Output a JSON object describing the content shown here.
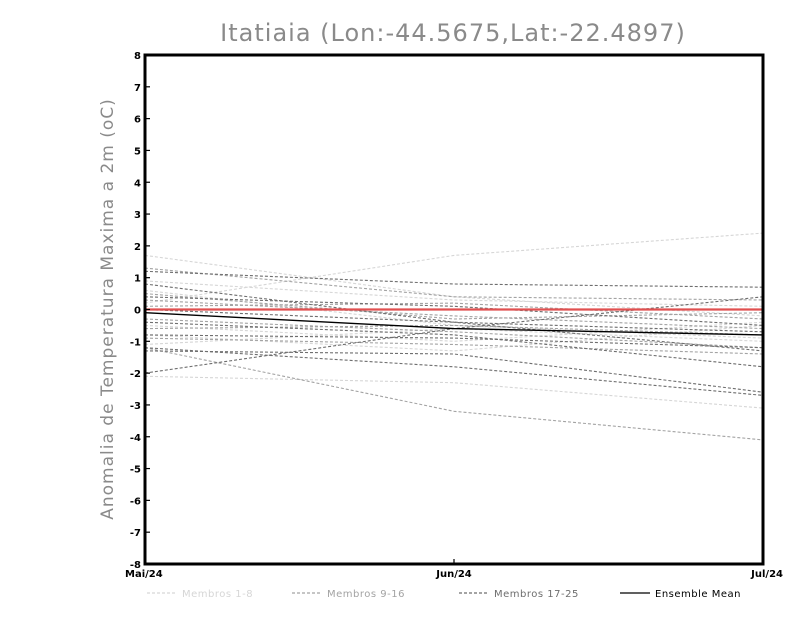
{
  "chart_data": {
    "type": "line",
    "title": "Itatiaia (Lon:-44.5675,Lat:-22.4897)",
    "xlabel": "",
    "ylabel": "Anomalia de Temperatura Maxima a 2m (oC)",
    "x": [
      "Mai/24",
      "Jun/24",
      "Jul/24"
    ],
    "ylim": [
      -8,
      8
    ],
    "yticks": [
      -8,
      -7,
      -6,
      -5,
      -4,
      -3,
      -2,
      -1,
      0,
      1,
      2,
      3,
      4,
      5,
      6,
      7,
      8
    ],
    "grid": false,
    "legend_position": "bottom",
    "legend": [
      {
        "label": "Membros 1-8",
        "color": "#d6d6d6",
        "dash": "dashed"
      },
      {
        "label": "Membros 9-16",
        "color": "#a3a3a3",
        "dash": "dashed"
      },
      {
        "label": "Membros 17-25",
        "color": "#6e6e6e",
        "dash": "dashed"
      },
      {
        "label": "Ensemble Mean",
        "color": "#000000",
        "dash": "solid"
      }
    ],
    "zero_line_color": "#e05050",
    "series": [
      {
        "group": 1,
        "values": [
          1.7,
          0.4,
          -0.2
        ]
      },
      {
        "group": 1,
        "values": [
          0.2,
          1.7,
          2.4
        ]
      },
      {
        "group": 1,
        "values": [
          -0.8,
          -1.3,
          -0.5
        ]
      },
      {
        "group": 1,
        "values": [
          -2.1,
          -2.3,
          -3.1
        ]
      },
      {
        "group": 1,
        "values": [
          0.6,
          -0.5,
          -0.9
        ]
      },
      {
        "group": 1,
        "values": [
          -0.5,
          -1.0,
          -0.4
        ]
      },
      {
        "group": 1,
        "values": [
          0.9,
          0.3,
          0.1
        ]
      },
      {
        "group": 1,
        "values": [
          -1.1,
          -0.6,
          -1.0
        ]
      },
      {
        "group": 2,
        "values": [
          1.3,
          0.4,
          0.3
        ]
      },
      {
        "group": 2,
        "values": [
          -1.2,
          -3.2,
          -4.1
        ]
      },
      {
        "group": 2,
        "values": [
          0.3,
          -0.2,
          -0.6
        ]
      },
      {
        "group": 2,
        "values": [
          -0.3,
          -0.7,
          -1.2
        ]
      },
      {
        "group": 2,
        "values": [
          0.1,
          0.2,
          -0.3
        ]
      },
      {
        "group": 2,
        "values": [
          -0.9,
          -1.1,
          -1.4
        ]
      },
      {
        "group": 2,
        "values": [
          0.5,
          -0.3,
          -0.1
        ]
      },
      {
        "group": 2,
        "values": [
          -0.6,
          -0.5,
          -0.8
        ]
      },
      {
        "group": 3,
        "values": [
          1.2,
          0.8,
          0.7
        ]
      },
      {
        "group": 3,
        "values": [
          -2.0,
          -0.6,
          0.4
        ]
      },
      {
        "group": 3,
        "values": [
          -1.2,
          -1.8,
          -2.7
        ]
      },
      {
        "group": 3,
        "values": [
          0.8,
          -0.4,
          -1.3
        ]
      },
      {
        "group": 3,
        "values": [
          -0.4,
          -0.8,
          -1.8
        ]
      },
      {
        "group": 3,
        "values": [
          0.4,
          0.1,
          -0.5
        ]
      },
      {
        "group": 3,
        "values": [
          -0.8,
          -0.9,
          -1.2
        ]
      },
      {
        "group": 3,
        "values": [
          0.0,
          -0.4,
          -0.7
        ]
      },
      {
        "group": 3,
        "values": [
          -1.3,
          -1.4,
          -2.6
        ]
      },
      {
        "group": "mean",
        "name": "Ensemble Mean",
        "values": [
          -0.1,
          -0.6,
          -0.8
        ]
      }
    ]
  }
}
